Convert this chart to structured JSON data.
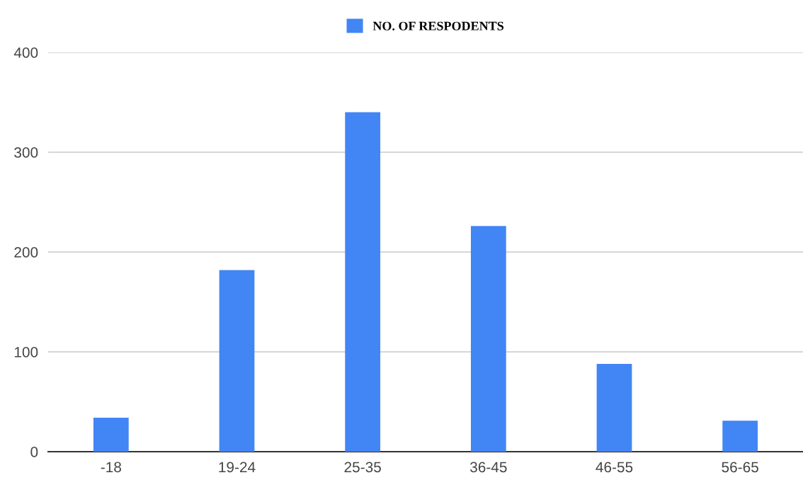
{
  "chart_data": {
    "type": "bar",
    "categories": [
      "-18",
      "19-24",
      "25-35",
      "36-45",
      "46-55",
      "56-65"
    ],
    "series": [
      {
        "name": "NO. OF RESPODENTS",
        "color": "#4285f4",
        "values": [
          34,
          182,
          340,
          226,
          88,
          31
        ]
      }
    ],
    "ylim": [
      0,
      400
    ],
    "yticks": [
      0,
      100,
      200,
      300,
      400
    ],
    "grid": "y",
    "legend": "top"
  }
}
